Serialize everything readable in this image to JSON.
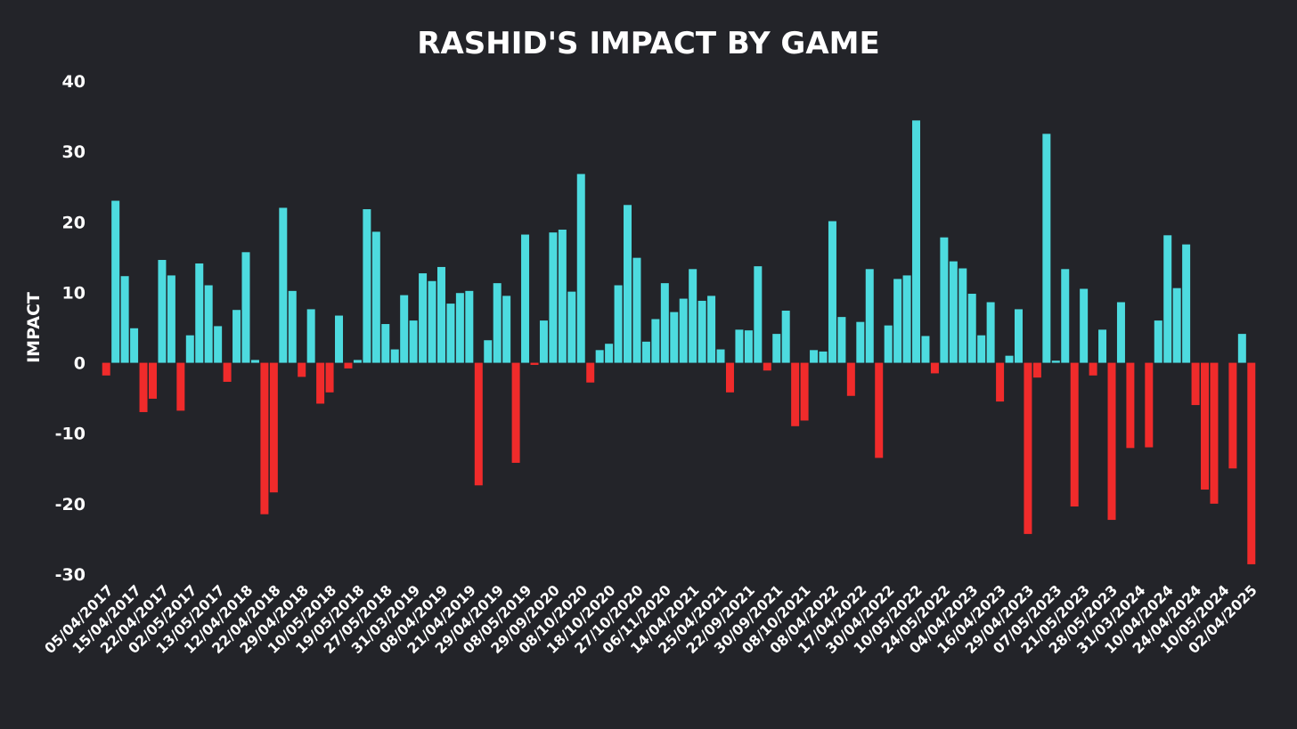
{
  "chart_data": {
    "type": "bar",
    "title": "RASHID'S IMPACT BY GAME",
    "xlabel": "",
    "ylabel": "IMPACT",
    "ylim": [
      -30,
      40
    ],
    "yticks": [
      40,
      30,
      20,
      10,
      0,
      -10,
      -20,
      -30
    ],
    "grid": false,
    "legend": "none",
    "colors": {
      "positive": "#4ddbdf",
      "negative": "#f02b2b",
      "background": "#232429",
      "text": "#ffffff"
    },
    "x_tick_labels": [
      "05/04/2017",
      "15/04/2017",
      "22/04/2017",
      "02/05/2017",
      "13/05/2017",
      "12/04/2018",
      "22/04/2018",
      "29/04/2018",
      "10/05/2018",
      "19/05/2018",
      "27/05/2018",
      "31/03/2019",
      "08/04/2019",
      "21/04/2019",
      "29/04/2019",
      "08/05/2019",
      "29/09/2020",
      "08/10/2020",
      "18/10/2020",
      "27/10/2020",
      "06/11/2020",
      "14/04/2021",
      "25/04/2021",
      "22/09/2021",
      "30/09/2021",
      "08/10/2021",
      "08/04/2022",
      "17/04/2022",
      "30/04/2022",
      "10/05/2022",
      "24/05/2022",
      "04/04/2023",
      "16/04/2023",
      "29/04/2023",
      "07/05/2023",
      "21/05/2023",
      "28/05/2023",
      "31/03/2024",
      "10/04/2024",
      "24/04/2024",
      "10/05/2024",
      "02/04/2025"
    ],
    "values": [
      -1.8,
      23,
      12.3,
      4.9,
      -7,
      -5.1,
      14.6,
      12.4,
      -6.8,
      3.9,
      14.1,
      11,
      5.2,
      -2.7,
      7.5,
      15.7,
      0.4,
      -21.5,
      -18.4,
      22,
      10.2,
      -2,
      7.6,
      -5.8,
      -4.2,
      6.7,
      -0.8,
      0.4,
      21.8,
      18.6,
      5.5,
      1.9,
      9.6,
      6,
      12.7,
      11.6,
      13.6,
      8.4,
      9.9,
      10.2,
      -17.4,
      3.2,
      11.3,
      9.5,
      -14.2,
      18.2,
      -0.3,
      6,
      18.5,
      18.9,
      10.1,
      26.8,
      -2.8,
      1.8,
      2.7,
      11,
      22.4,
      14.9,
      3,
      6.2,
      11.3,
      7.2,
      9.1,
      13.3,
      8.8,
      9.5,
      1.9,
      -4.2,
      4.7,
      4.6,
      13.7,
      -1.1,
      4.1,
      7.4,
      -9,
      -8.2,
      1.8,
      1.6,
      20.1,
      6.5,
      -4.7,
      5.8,
      13.3,
      -13.5,
      5.3,
      11.9,
      12.4,
      34.4,
      3.8,
      -1.5,
      17.8,
      14.4,
      13.4,
      9.8,
      3.9,
      8.6,
      -5.5,
      1,
      7.6,
      -24.3,
      -2.1,
      32.5,
      0.3,
      13.3,
      -20.4,
      10.5,
      -1.8,
      4.7,
      -22.3,
      8.6,
      -12.1,
      0,
      -12,
      6,
      18.1,
      10.6,
      16.8,
      -6,
      -18,
      -20,
      0,
      -15,
      4.1,
      -28.6
    ]
  }
}
